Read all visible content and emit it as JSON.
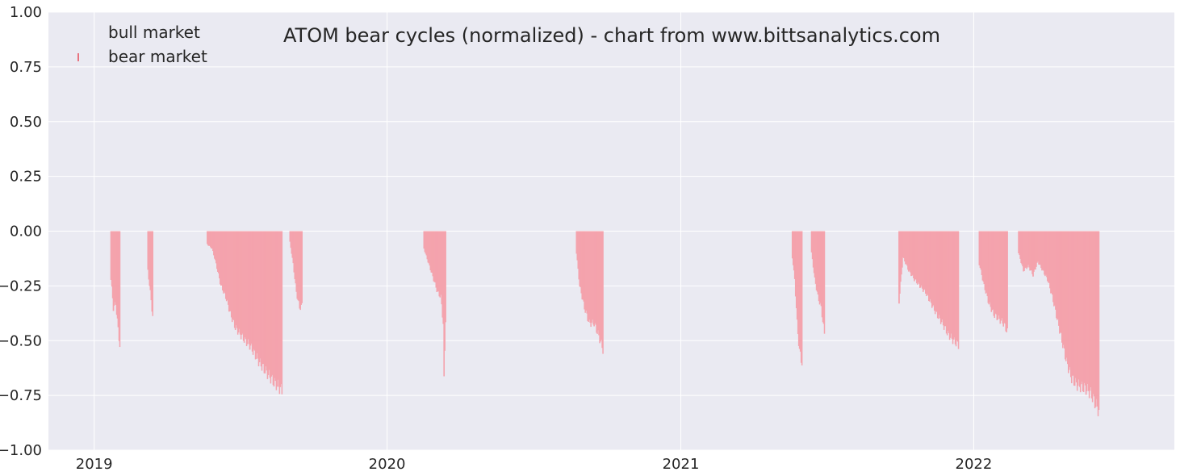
{
  "chart_data": {
    "type": "area",
    "title": "ATOM bear cycles (normalized)  - chart from www.bittsanalytics.com",
    "xlabel": "",
    "ylabel": "",
    "ylim": [
      -1.0,
      1.0
    ],
    "xlim": [
      "2018-11-05",
      "2022-09-08"
    ],
    "y_ticks": [
      "1.00",
      "0.75",
      "0.50",
      "0.25",
      "0.00",
      "−0.25",
      "−0.50",
      "−0.75",
      "−1.00"
    ],
    "x_ticks": [
      {
        "date": "2019-01-01",
        "label": "2019"
      },
      {
        "date": "2020-01-01",
        "label": "2020"
      },
      {
        "date": "2021-01-01",
        "label": "2021"
      },
      {
        "date": "2022-01-01",
        "label": "2022"
      }
    ],
    "grid": true,
    "legend_position": "top-left",
    "colors": {
      "background": "#eaeaf2",
      "grid": "#ffffff",
      "bear": "#f4a3ad",
      "bear_marker": "#e8737f",
      "bull": "#ffffff"
    },
    "series": [
      {
        "name": "bull market",
        "values": []
      },
      {
        "name": "bear market",
        "values": [
          {
            "x": "2019-01-21",
            "y": 0.0
          },
          {
            "x": "2019-01-22",
            "y": -0.22
          },
          {
            "x": "2019-01-25",
            "y": -0.35
          },
          {
            "x": "2019-01-28",
            "y": -0.33
          },
          {
            "x": "2019-01-31",
            "y": -0.45
          },
          {
            "x": "2019-02-02",
            "y": -0.52
          },
          {
            "x": "2019-02-03",
            "y": 0.0
          },
          {
            "x": "2019-03-08",
            "y": 0.0
          },
          {
            "x": "2019-03-09",
            "y": -0.18
          },
          {
            "x": "2019-03-12",
            "y": -0.28
          },
          {
            "x": "2019-03-15",
            "y": -0.39
          },
          {
            "x": "2019-03-16",
            "y": 0.0
          },
          {
            "x": "2019-05-21",
            "y": 0.0
          },
          {
            "x": "2019-05-22",
            "y": -0.06
          },
          {
            "x": "2019-05-28",
            "y": -0.08
          },
          {
            "x": "2019-06-02",
            "y": -0.15
          },
          {
            "x": "2019-06-08",
            "y": -0.25
          },
          {
            "x": "2019-06-14",
            "y": -0.3
          },
          {
            "x": "2019-06-20",
            "y": -0.38
          },
          {
            "x": "2019-06-26",
            "y": -0.44
          },
          {
            "x": "2019-07-02",
            "y": -0.47
          },
          {
            "x": "2019-07-08",
            "y": -0.5
          },
          {
            "x": "2019-07-14",
            "y": -0.52
          },
          {
            "x": "2019-07-20",
            "y": -0.56
          },
          {
            "x": "2019-07-26",
            "y": -0.6
          },
          {
            "x": "2019-08-01",
            "y": -0.63
          },
          {
            "x": "2019-08-07",
            "y": -0.66
          },
          {
            "x": "2019-08-13",
            "y": -0.69
          },
          {
            "x": "2019-08-19",
            "y": -0.71
          },
          {
            "x": "2019-08-23",
            "y": -0.73
          },
          {
            "x": "2019-08-24",
            "y": 0.0
          },
          {
            "x": "2019-09-01",
            "y": 0.0
          },
          {
            "x": "2019-09-02",
            "y": -0.05
          },
          {
            "x": "2019-09-06",
            "y": -0.15
          },
          {
            "x": "2019-09-10",
            "y": -0.28
          },
          {
            "x": "2019-09-14",
            "y": -0.35
          },
          {
            "x": "2019-09-17",
            "y": -0.34
          },
          {
            "x": "2019-09-18",
            "y": 0.0
          },
          {
            "x": "2020-02-15",
            "y": 0.0
          },
          {
            "x": "2020-02-16",
            "y": -0.08
          },
          {
            "x": "2020-02-22",
            "y": -0.15
          },
          {
            "x": "2020-02-28",
            "y": -0.22
          },
          {
            "x": "2020-03-04",
            "y": -0.28
          },
          {
            "x": "2020-03-08",
            "y": -0.3
          },
          {
            "x": "2020-03-11",
            "y": -0.42
          },
          {
            "x": "2020-03-12",
            "y": -0.69
          },
          {
            "x": "2020-03-14",
            "y": -0.4
          },
          {
            "x": "2020-03-15",
            "y": 0.0
          },
          {
            "x": "2020-08-23",
            "y": 0.0
          },
          {
            "x": "2020-08-24",
            "y": -0.1
          },
          {
            "x": "2020-08-28",
            "y": -0.25
          },
          {
            "x": "2020-09-03",
            "y": -0.35
          },
          {
            "x": "2020-09-09",
            "y": -0.42
          },
          {
            "x": "2020-09-15",
            "y": -0.42
          },
          {
            "x": "2020-09-21",
            "y": -0.48
          },
          {
            "x": "2020-09-26",
            "y": -0.54
          },
          {
            "x": "2020-09-27",
            "y": 0.0
          },
          {
            "x": "2021-05-19",
            "y": 0.0
          },
          {
            "x": "2021-05-20",
            "y": -0.12
          },
          {
            "x": "2021-05-23",
            "y": -0.22
          },
          {
            "x": "2021-05-26",
            "y": -0.42
          },
          {
            "x": "2021-05-29",
            "y": -0.55
          },
          {
            "x": "2021-06-01",
            "y": -0.6
          },
          {
            "x": "2021-06-02",
            "y": 0.0
          },
          {
            "x": "2021-06-12",
            "y": 0.0
          },
          {
            "x": "2021-06-13",
            "y": -0.1
          },
          {
            "x": "2021-06-17",
            "y": -0.22
          },
          {
            "x": "2021-06-21",
            "y": -0.3
          },
          {
            "x": "2021-06-25",
            "y": -0.35
          },
          {
            "x": "2021-06-29",
            "y": -0.47
          },
          {
            "x": "2021-06-30",
            "y": 0.0
          },
          {
            "x": "2021-09-29",
            "y": 0.0
          },
          {
            "x": "2021-09-30",
            "y": -0.32
          },
          {
            "x": "2021-10-05",
            "y": -0.12
          },
          {
            "x": "2021-10-12",
            "y": -0.18
          },
          {
            "x": "2021-10-19",
            "y": -0.22
          },
          {
            "x": "2021-10-26",
            "y": -0.25
          },
          {
            "x": "2021-11-02",
            "y": -0.28
          },
          {
            "x": "2021-11-09",
            "y": -0.33
          },
          {
            "x": "2021-11-16",
            "y": -0.38
          },
          {
            "x": "2021-11-23",
            "y": -0.42
          },
          {
            "x": "2021-11-30",
            "y": -0.47
          },
          {
            "x": "2021-12-07",
            "y": -0.5
          },
          {
            "x": "2021-12-13",
            "y": -0.52
          },
          {
            "x": "2021-12-14",
            "y": 0.0
          },
          {
            "x": "2022-01-07",
            "y": 0.0
          },
          {
            "x": "2022-01-08",
            "y": -0.15
          },
          {
            "x": "2022-01-14",
            "y": -0.25
          },
          {
            "x": "2022-01-20",
            "y": -0.33
          },
          {
            "x": "2022-01-26",
            "y": -0.38
          },
          {
            "x": "2022-02-01",
            "y": -0.4
          },
          {
            "x": "2022-02-07",
            "y": -0.42
          },
          {
            "x": "2022-02-12",
            "y": -0.46
          },
          {
            "x": "2022-02-13",
            "y": 0.0
          },
          {
            "x": "2022-02-25",
            "y": 0.0
          },
          {
            "x": "2022-02-26",
            "y": -0.1
          },
          {
            "x": "2022-03-04",
            "y": -0.18
          },
          {
            "x": "2022-03-10",
            "y": -0.16
          },
          {
            "x": "2022-03-16",
            "y": -0.2
          },
          {
            "x": "2022-03-22",
            "y": -0.14
          },
          {
            "x": "2022-03-28",
            "y": -0.18
          },
          {
            "x": "2022-04-03",
            "y": -0.22
          },
          {
            "x": "2022-04-09",
            "y": -0.3
          },
          {
            "x": "2022-04-15",
            "y": -0.4
          },
          {
            "x": "2022-04-21",
            "y": -0.5
          },
          {
            "x": "2022-04-27",
            "y": -0.6
          },
          {
            "x": "2022-05-03",
            "y": -0.67
          },
          {
            "x": "2022-05-09",
            "y": -0.7
          },
          {
            "x": "2022-05-15",
            "y": -0.71
          },
          {
            "x": "2022-05-21",
            "y": -0.72
          },
          {
            "x": "2022-05-27",
            "y": -0.74
          },
          {
            "x": "2022-06-02",
            "y": -0.79
          },
          {
            "x": "2022-06-06",
            "y": -0.82
          },
          {
            "x": "2022-06-07",
            "y": 0.0
          }
        ]
      }
    ]
  }
}
